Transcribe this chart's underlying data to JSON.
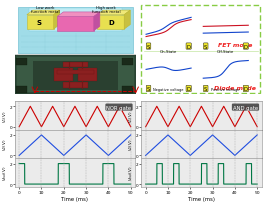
{
  "background": "#ffffff",
  "nor_gate_label": "NOR gate",
  "and_gate_label": "AND gate",
  "time_label": "Time (ms)",
  "xlim": [
    -2,
    52
  ],
  "xticks": [
    0,
    10,
    20,
    30,
    40,
    50
  ],
  "ylim_signal": [
    -0.3,
    2.5
  ],
  "dashed_color": "#aaaaaa",
  "red_arrow_color": "#cc0000",
  "colors": {
    "V1": "#cc0000",
    "V2": "#1f4de0",
    "Vout": "#007744"
  },
  "top_bg": "#c8e8f0",
  "micro_bg": "#2a4a3a",
  "micro_pad": "#1a3020",
  "schematic_base": "#88d8e8",
  "src_drain_color": "#e8d840",
  "gate_color": "#e070b0",
  "fet_border": "#88cc44",
  "fet_label_color": "#ee2020",
  "diode_label_color": "#ee2020"
}
